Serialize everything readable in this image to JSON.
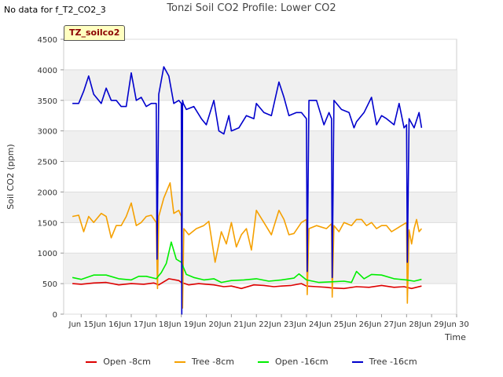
{
  "header": {
    "nodata_text": "No data for f_T2_CO2_3",
    "site_badge": "TZ_soilco2"
  },
  "chart_data": {
    "type": "line",
    "title": "Tonzi Soil CO2 Profile: Lower CO2",
    "xlabel": "Time",
    "ylabel": "Soil CO2 (ppm)",
    "xlim": [
      14.3,
      30.0
    ],
    "ylim": [
      0,
      4500
    ],
    "xticks": [
      15,
      16,
      17,
      18,
      19,
      20,
      21,
      22,
      23,
      24,
      25,
      26,
      27,
      28,
      29,
      30
    ],
    "xtick_labels": [
      "Jun 15",
      "Jun 16",
      "Jun 17",
      "Jun 18",
      "Jun 19",
      "Jun 20",
      "Jun 21",
      "Jun 22",
      "Jun 23",
      "Jun 24",
      "Jun 25",
      "Jun 26",
      "Jun 27",
      "Jun 28",
      "Jun 29",
      "Jun 30"
    ],
    "yticks": [
      0,
      500,
      1000,
      1500,
      2000,
      2500,
      3000,
      3500,
      4000,
      4500
    ],
    "ytick_labels": [
      "0",
      "500",
      "1000",
      "1500",
      "2000",
      "2500",
      "3000",
      "3500",
      "4000",
      "4500"
    ],
    "grid": true,
    "legend_position": "bottom",
    "series": [
      {
        "name": "Open -8cm",
        "color": "#dd0000",
        "x": [
          14.65,
          15.0,
          15.5,
          16.0,
          16.5,
          17.0,
          17.5,
          17.9,
          18.1,
          18.5,
          18.9,
          19.0,
          19.3,
          19.7,
          20.0,
          20.3,
          20.7,
          21.0,
          21.4,
          21.9,
          22.3,
          22.7,
          23.0,
          23.4,
          23.8,
          24.0,
          24.4,
          24.8,
          25.0,
          25.5,
          26.0,
          26.5,
          27.0,
          27.5,
          27.9,
          28.2,
          28.6
        ],
        "y": [
          500,
          490,
          510,
          520,
          480,
          500,
          490,
          510,
          480,
          580,
          550,
          520,
          480,
          500,
          490,
          480,
          450,
          460,
          420,
          480,
          470,
          450,
          460,
          470,
          500,
          460,
          450,
          440,
          430,
          420,
          450,
          440,
          470,
          440,
          450,
          420,
          460
        ]
      },
      {
        "name": "Tree -8cm",
        "color": "#f5a000",
        "x": [
          14.65,
          14.9,
          15.1,
          15.3,
          15.5,
          15.8,
          16.0,
          16.2,
          16.4,
          16.6,
          16.8,
          17.0,
          17.2,
          17.4,
          17.6,
          17.8,
          18.0,
          18.05,
          18.1,
          18.3,
          18.55,
          18.7,
          18.9,
          19.0,
          19.05,
          19.1,
          19.3,
          19.6,
          19.9,
          20.1,
          20.35,
          20.6,
          20.8,
          21.0,
          21.2,
          21.4,
          21.6,
          21.8,
          22.0,
          22.3,
          22.6,
          22.9,
          23.1,
          23.3,
          23.5,
          23.8,
          24.0,
          24.03,
          24.1,
          24.4,
          24.8,
          25.0,
          25.03,
          25.1,
          25.3,
          25.5,
          25.8,
          26.0,
          26.2,
          26.4,
          26.6,
          26.8,
          27.0,
          27.2,
          27.4,
          27.6,
          27.8,
          28.0,
          28.03,
          28.1,
          28.2,
          28.3,
          28.4,
          28.5,
          28.6
        ],
        "y": [
          1600,
          1620,
          1350,
          1600,
          1500,
          1650,
          1600,
          1250,
          1450,
          1450,
          1600,
          1820,
          1450,
          1500,
          1600,
          1620,
          1500,
          420,
          1600,
          1900,
          2150,
          1650,
          1700,
          1600,
          100,
          1400,
          1300,
          1400,
          1450,
          1520,
          850,
          1350,
          1150,
          1500,
          1100,
          1300,
          1400,
          1050,
          1700,
          1500,
          1300,
          1700,
          1550,
          1300,
          1320,
          1500,
          1550,
          320,
          1400,
          1450,
          1400,
          1480,
          280,
          1450,
          1350,
          1500,
          1450,
          1550,
          1550,
          1450,
          1500,
          1400,
          1450,
          1450,
          1350,
          1400,
          1450,
          1500,
          180,
          1380,
          1150,
          1400,
          1550,
          1350,
          1400
        ]
      },
      {
        "name": "Open -16cm",
        "color": "#00ee00",
        "x": [
          14.65,
          15.0,
          15.5,
          16.0,
          16.5,
          17.0,
          17.3,
          17.6,
          18.0,
          18.2,
          18.4,
          18.6,
          18.8,
          19.0,
          19.2,
          19.5,
          19.9,
          20.3,
          20.6,
          21.0,
          21.5,
          22.0,
          22.5,
          23.0,
          23.5,
          23.7,
          24.0,
          24.5,
          25.0,
          25.5,
          25.8,
          26.0,
          26.3,
          26.6,
          27.0,
          27.5,
          28.0,
          28.3,
          28.6
        ],
        "y": [
          600,
          570,
          640,
          640,
          580,
          560,
          620,
          620,
          580,
          680,
          830,
          1180,
          900,
          850,
          650,
          600,
          560,
          580,
          520,
          550,
          560,
          580,
          540,
          560,
          590,
          660,
          560,
          520,
          530,
          540,
          520,
          700,
          580,
          650,
          640,
          580,
          560,
          540,
          570
        ]
      },
      {
        "name": "Tree -16cm",
        "color": "#0000cc",
        "x": [
          14.65,
          14.9,
          15.1,
          15.3,
          15.5,
          15.8,
          16.0,
          16.2,
          16.4,
          16.6,
          16.8,
          17.0,
          17.2,
          17.4,
          17.6,
          17.8,
          18.0,
          18.03,
          18.1,
          18.3,
          18.5,
          18.7,
          18.9,
          19.0,
          19.02,
          19.05,
          19.08,
          19.2,
          19.5,
          19.8,
          20.0,
          20.3,
          20.5,
          20.7,
          20.9,
          21.0,
          21.3,
          21.6,
          21.9,
          22.0,
          22.3,
          22.6,
          22.9,
          23.1,
          23.3,
          23.6,
          23.8,
          24.0,
          24.03,
          24.1,
          24.4,
          24.7,
          24.9,
          25.0,
          25.03,
          25.1,
          25.4,
          25.7,
          25.9,
          26.0,
          26.3,
          26.6,
          26.8,
          27.0,
          27.2,
          27.5,
          27.7,
          27.9,
          28.0,
          28.03,
          28.1,
          28.3,
          28.5,
          28.6
        ],
        "y": [
          3450,
          3450,
          3650,
          3900,
          3600,
          3450,
          3700,
          3500,
          3500,
          3400,
          3400,
          3950,
          3500,
          3550,
          3400,
          3450,
          3450,
          900,
          3600,
          4050,
          3900,
          3450,
          3500,
          3450,
          0,
          3500,
          3450,
          3350,
          3400,
          3200,
          3100,
          3500,
          3000,
          2950,
          3250,
          3000,
          3050,
          3250,
          3200,
          3450,
          3300,
          3250,
          3800,
          3550,
          3250,
          3300,
          3300,
          3200,
          700,
          3500,
          3500,
          3100,
          3300,
          3200,
          600,
          3500,
          3350,
          3300,
          3050,
          3150,
          3300,
          3550,
          3100,
          3250,
          3200,
          3100,
          3450,
          3050,
          3100,
          850,
          3200,
          3050,
          3300,
          3050
        ]
      }
    ]
  }
}
